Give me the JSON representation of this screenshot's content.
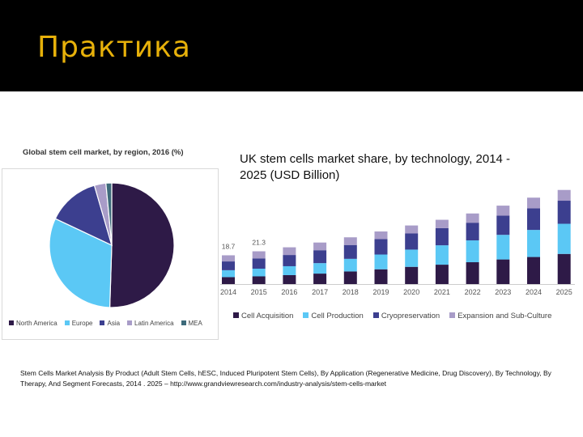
{
  "slide": {
    "title": "Практика"
  },
  "pie": {
    "title": "Global stem cell market, by region, 2016 (%)",
    "chart_data": {
      "type": "pie",
      "title": "Global stem cell market, by region, 2016 (%)",
      "categories": [
        "North America",
        "Europe",
        "Asia",
        "Latin America",
        "MEA"
      ],
      "values": [
        50.5,
        31.5,
        13.5,
        3.0,
        1.5
      ],
      "colors": [
        "#2e1a47",
        "#5bc8f5",
        "#3c3f8f",
        "#a89cc8",
        "#3d6a7a"
      ],
      "legend_position": "bottom"
    }
  },
  "bar": {
    "title": "UK stem cells market share, by technology, 2014 - 2025 (USD Billion)",
    "chart_data": {
      "type": "bar",
      "stacked": true,
      "categories": [
        "2014",
        "2015",
        "2016",
        "2017",
        "2018",
        "2019",
        "2020",
        "2021",
        "2022",
        "2023",
        "2024",
        "2025"
      ],
      "series": [
        {
          "name": "Cell Acquisition",
          "color": "#2e1a47",
          "values": [
            4.5,
            5.0,
            5.8,
            6.8,
            8.2,
            9.6,
            11.2,
            12.6,
            14.2,
            16.0,
            17.6,
            19.6
          ]
        },
        {
          "name": "Cell Production",
          "color": "#5bc8f5",
          "values": [
            4.5,
            5.0,
            5.8,
            6.8,
            8.2,
            9.6,
            11.2,
            12.6,
            14.2,
            16.0,
            17.6,
            19.6
          ]
        },
        {
          "name": "Cryopreservation",
          "color": "#3c3f8f",
          "values": [
            5.7,
            6.7,
            7.3,
            8.4,
            9.0,
            10.0,
            10.5,
            11.2,
            11.5,
            12.5,
            14.0,
            15.0
          ]
        },
        {
          "name": "Expansion and Sub-Culture",
          "color": "#a89cc8",
          "values": [
            4.0,
            4.6,
            5.0,
            5.0,
            5.0,
            5.0,
            5.2,
            5.4,
            6.0,
            6.5,
            7.0,
            7.0
          ]
        }
      ],
      "data_labels": [
        "18.7",
        "21.3"
      ],
      "ylim": [
        0,
        70
      ],
      "legend_position": "bottom"
    }
  },
  "source": {
    "text": "Stem Cells Market Analysis By Product (Adult Stem Cells, hESC, Induced Pluripotent Stem Cells), By Application (Regenerative Medicine, Drug Discovery), By Technology, By Therapy, And Segment Forecasts, 2014 . 2025 – http://www.grandviewresearch.com/industry-analysis/stem-cells-market"
  }
}
